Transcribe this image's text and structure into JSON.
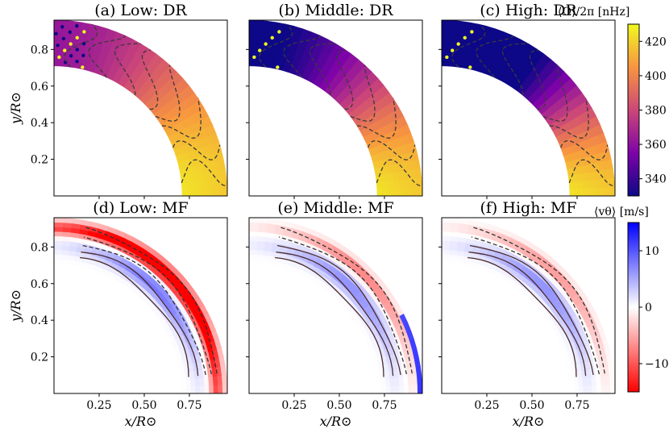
{
  "chart_data": [
    {
      "type": "heatmap",
      "title": "(a) Low: DR",
      "ylabel": "y/R⊙",
      "xlim": [
        0,
        0.96
      ],
      "ylim": [
        0,
        0.96
      ],
      "yticks": [
        "0.2",
        "0.4",
        "0.6",
        "0.8"
      ],
      "colormap": "plasma",
      "quantity": "differential rotation ⟨Ω⟩/2π",
      "r_range": [
        0.71,
        0.96
      ],
      "contour_style": "dashed"
    },
    {
      "type": "heatmap",
      "title": "(b) Middle: DR",
      "xlim": [
        0,
        0.96
      ],
      "ylim": [
        0,
        0.96
      ],
      "colormap": "plasma",
      "quantity": "differential rotation ⟨Ω⟩/2π",
      "r_range": [
        0.71,
        0.96
      ],
      "contour_style": "dashed"
    },
    {
      "type": "heatmap",
      "title": "(c) High: DR",
      "xlim": [
        0,
        0.96
      ],
      "ylim": [
        0,
        0.96
      ],
      "colormap": "plasma",
      "quantity": "differential rotation ⟨Ω⟩/2π",
      "r_range": [
        0.71,
        0.96
      ],
      "contour_style": "dashed"
    },
    {
      "type": "heatmap",
      "title": "(d) Low: MF",
      "xlabel": "x/R⊙",
      "ylabel": "y/R⊙",
      "xlim": [
        0,
        0.96
      ],
      "ylim": [
        0,
        0.96
      ],
      "xticks": [
        "0.25",
        "0.50",
        "0.75"
      ],
      "yticks": [
        "0.2",
        "0.4",
        "0.6",
        "0.8"
      ],
      "colormap": "bwr_r",
      "quantity": "meridional flow ⟨vθ⟩",
      "r_range": [
        0.71,
        0.96
      ],
      "contour_style": "solid/dashed"
    },
    {
      "type": "heatmap",
      "title": "(e) Middle: MF",
      "xlabel": "x/R⊙",
      "xlim": [
        0,
        0.96
      ],
      "ylim": [
        0,
        0.96
      ],
      "xticks": [
        "0.25",
        "0.50",
        "0.75"
      ],
      "colormap": "bwr_r",
      "quantity": "meridional flow ⟨vθ⟩",
      "r_range": [
        0.71,
        0.96
      ],
      "contour_style": "solid/dashed"
    },
    {
      "type": "heatmap",
      "title": "(f) High: MF",
      "xlabel": "x/R⊙",
      "xlim": [
        0,
        0.96
      ],
      "ylim": [
        0,
        0.96
      ],
      "xticks": [
        "0.25",
        "0.50",
        "0.75"
      ],
      "colormap": "bwr_r",
      "quantity": "meridional flow ⟨vθ⟩",
      "r_range": [
        0.71,
        0.96
      ],
      "contour_style": "solid/dashed"
    }
  ],
  "colorbars": [
    {
      "label": "⟨Ω⟩/2π [nHz]",
      "range": [
        330,
        430
      ],
      "ticks": [
        "340",
        "360",
        "380",
        "400",
        "420"
      ],
      "tick_values": [
        340,
        360,
        380,
        400,
        420
      ],
      "colors": [
        "#0d0887",
        "#7e03a8",
        "#cc4778",
        "#f89540",
        "#f0f921"
      ]
    },
    {
      "label": "⟨vθ⟩ [m/s]",
      "range": [
        -15,
        15
      ],
      "ticks": [
        "−10",
        "0",
        "10"
      ],
      "tick_values": [
        -10,
        0,
        10
      ],
      "colors": [
        "#ff0000",
        "#ffffff",
        "#0000ff"
      ]
    }
  ]
}
